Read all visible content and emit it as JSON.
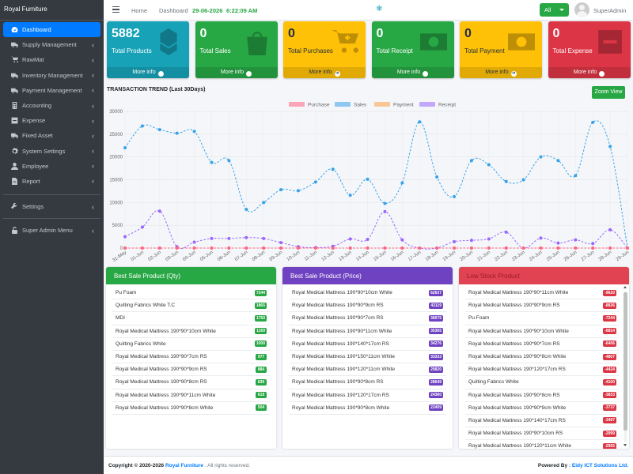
{
  "brand": "Royal Furniture",
  "sidebar": {
    "items": [
      {
        "label": "Dashboard",
        "icon": "tachometer-icon",
        "active": true,
        "chevron": false
      },
      {
        "label": "Supply Management",
        "icon": "truck-icon",
        "chevron": true
      },
      {
        "label": "RawMat",
        "icon": "cart-icon",
        "chevron": true
      },
      {
        "label": "Inventory Management",
        "icon": "truck-icon",
        "chevron": true
      },
      {
        "label": "Payment Management",
        "icon": "truck-icon",
        "chevron": true
      },
      {
        "label": "Accounting",
        "icon": "calculator-icon",
        "chevron": true
      },
      {
        "label": "Expense",
        "icon": "minus-square-icon",
        "chevron": true
      },
      {
        "label": "Fixed Asset",
        "icon": "truck-icon",
        "chevron": true
      },
      {
        "label": "System Settings",
        "icon": "cogs-icon",
        "chevron": true
      },
      {
        "label": "Employee",
        "icon": "user-icon",
        "chevron": true
      },
      {
        "label": "Report",
        "icon": "file-icon",
        "chevron": true
      }
    ],
    "settings": {
      "label": "Settings",
      "icon": "tools-icon"
    },
    "super_admin": {
      "label": "Super Admin Menu",
      "icon": "unlock-icon"
    },
    "chevron_glyph": "‹"
  },
  "header": {
    "home": "Home",
    "dashboard": "Dashboard",
    "date": "29-06-2026",
    "time": "6:22:09 AM",
    "snow_glyph": "❄",
    "filter": "All",
    "user": "SuperAdmin"
  },
  "cards": [
    {
      "value": "5882",
      "label": "Total Products",
      "more": "More info",
      "color": "#17a2b8",
      "icon": "cubes-icon"
    },
    {
      "value": "0",
      "label": "Total Sales",
      "more": "More info",
      "color": "#28a745",
      "icon": "shopping-bag-icon"
    },
    {
      "value": "0",
      "label": "Total Purchases",
      "more": "More info",
      "color": "#ffc107",
      "icon": "cart-plus-icon"
    },
    {
      "value": "0",
      "label": "Total Receipt",
      "more": "More info",
      "color": "#28a745",
      "icon": "money-bill-icon"
    },
    {
      "value": "0",
      "label": "Total Payment",
      "more": "More info",
      "color": "#ffc107",
      "icon": "money-bill-icon"
    },
    {
      "value": "0",
      "label": "Total Expense",
      "more": "More info",
      "color": "#dc3545",
      "icon": "minus-square-icon"
    }
  ],
  "more_arrow": "➔",
  "chart": {
    "title": "TRANSACTION TREND (Last 30Days)",
    "zoom_label": "Zoom View"
  },
  "chart_data": {
    "type": "line",
    "x": [
      "31-May",
      "01-Jun",
      "02-Jun",
      "03-Jun",
      "04-Jun",
      "05-Jun",
      "06-Jun",
      "07-Jun",
      "08-Jun",
      "09-Jun",
      "10-Jun",
      "11-Jun",
      "12-Jun",
      "13-Jun",
      "14-Jun",
      "15-Jun",
      "16-Jun",
      "17-Jun",
      "18-Jun",
      "19-Jun",
      "20-Jun",
      "21-Jun",
      "22-Jun",
      "23-Jun",
      "24-Jun",
      "25-Jun",
      "26-Jun",
      "27-Jun",
      "28-Jun",
      "29-Jun"
    ],
    "ylim": [
      0,
      30000
    ],
    "yticks": [
      0,
      5000,
      10000,
      15000,
      20000,
      25000,
      30000
    ],
    "legend_position": "top",
    "grid": true,
    "series": [
      {
        "name": "Purchase",
        "color": "#ff6384",
        "values": [
          0,
          0,
          0,
          0,
          0,
          0,
          0,
          0,
          0,
          0,
          0,
          0,
          0,
          0,
          0,
          0,
          0,
          0,
          0,
          0,
          0,
          0,
          0,
          0,
          0,
          0,
          0,
          0,
          0,
          0
        ]
      },
      {
        "name": "Sales",
        "color": "#36a2eb",
        "values": [
          22000,
          26800,
          26000,
          25200,
          25600,
          18800,
          19200,
          8500,
          10000,
          12800,
          12600,
          14500,
          17300,
          11600,
          15100,
          9800,
          14300,
          27700,
          15600,
          11300,
          19200,
          18300,
          14600,
          15000,
          20000,
          19200,
          15900,
          27600,
          22300,
          0
        ]
      },
      {
        "name": "Payment",
        "color": "#ff9f40",
        "values": [
          0,
          0,
          0,
          0,
          0,
          0,
          0,
          0,
          0,
          0,
          0,
          0,
          0,
          0,
          0,
          0,
          0,
          0,
          0,
          0,
          0,
          0,
          0,
          0,
          0,
          0,
          0,
          0,
          0,
          0
        ]
      },
      {
        "name": "Receipt",
        "color": "#9966ff",
        "values": [
          2500,
          4600,
          8100,
          300,
          1300,
          2100,
          2100,
          2300,
          2100,
          1200,
          300,
          100,
          400,
          2000,
          1900,
          8000,
          1800,
          0,
          0,
          1400,
          1700,
          2000,
          3500,
          0,
          2200,
          1100,
          1800,
          1000,
          4000,
          0
        ]
      }
    ]
  },
  "best_qty": {
    "title": "Best Sale Product (Qty)",
    "color": "#28a745",
    "items": [
      {
        "name": "Pu Foam",
        "value": "7244"
      },
      {
        "name": "Quilting Fabrics White T.C",
        "value": "1865"
      },
      {
        "name": "MDI",
        "value": "1750"
      },
      {
        "name": "Royal Medical Mattress 190*90*10cm White",
        "value": "1169"
      },
      {
        "name": "Quilting Fabrics White",
        "value": "1000"
      },
      {
        "name": "Royal Medical Mattress 190*90*7cm RS",
        "value": "977"
      },
      {
        "name": "Royal Medical Mattress 190*90*9cm RS",
        "value": "884"
      },
      {
        "name": "Royal Medical Mattress 190*90*8cm RS",
        "value": "839"
      },
      {
        "name": "Royal Medical Mattress 190*90*11cm White",
        "value": "619"
      },
      {
        "name": "Royal Medical Mattress 190*90*8cm White",
        "value": "504"
      }
    ]
  },
  "best_price": {
    "title": "Best Sale Product (Price)",
    "color": "#6f42c1",
    "items": [
      {
        "name": "Royal Medical Mattress 190*90*10cm White",
        "value": "62637"
      },
      {
        "name": "Royal Medical Mattress 190*90*9cm RS",
        "value": "43119"
      },
      {
        "name": "Royal Medical Mattress 190*90*7cm RS",
        "value": "36675"
      },
      {
        "name": "Royal Medical Mattress 190*90*11cm White",
        "value": "35365"
      },
      {
        "name": "Royal Medical Mattress 190*140*17cm RS",
        "value": "34276"
      },
      {
        "name": "Royal Medical Mattress 190*150*11cm White",
        "value": "33333"
      },
      {
        "name": "Royal Medical Mattress 190*120*11cm White",
        "value": "29820"
      },
      {
        "name": "Royal Medical Mattress 190*90*8cm RS",
        "value": "28649"
      },
      {
        "name": "Royal Medical Mattress 190*120*17cm RS",
        "value": "24360"
      },
      {
        "name": "Royal Medical Mattress 190*90*8cm White",
        "value": "22409"
      }
    ]
  },
  "low_stock": {
    "title": "Low Stock Product",
    "color": "#dc3545",
    "items": [
      {
        "name": "Royal Medical Mattress 190*90*11cm White",
        "value": "-9620"
      },
      {
        "name": "Royal Medical Mattress 190*90*9cm RS",
        "value": "-8836"
      },
      {
        "name": "Pu Foam",
        "value": "-7244"
      },
      {
        "name": "Royal Medical Mattress 190*90*10cm White",
        "value": "-6814"
      },
      {
        "name": "Royal Medical Mattress 190*90*7cm RS",
        "value": "-6406"
      },
      {
        "name": "Royal Medical Mattress 190*90*8cm White",
        "value": "-4807"
      },
      {
        "name": "Royal Medical Mattress 190*120*17cm RS",
        "value": "-4424"
      },
      {
        "name": "Quilting Fabrics White",
        "value": "-4100"
      },
      {
        "name": "Royal Medical Mattress 190*90*8cm RS",
        "value": "-3833"
      },
      {
        "name": "Royal Medical Mattress 190*90*9cm White",
        "value": "-3737"
      },
      {
        "name": "Royal Medical Mattress 190*140*17cm RS",
        "value": "-3487"
      },
      {
        "name": "Royal Medical Mattress 190*90*10cm RS",
        "value": "-2999"
      },
      {
        "name": "Royal Medical Mattress 190*120*11cm White",
        "value": "-2955"
      }
    ]
  },
  "footer": {
    "copyright": "Copyright © 2020-2026",
    "brand": "Royal Furniture",
    "rights": ". All rights reserved.",
    "powered_label": "Powered By",
    "powered_by": ": Eidy ICT Solutions Ltd."
  }
}
